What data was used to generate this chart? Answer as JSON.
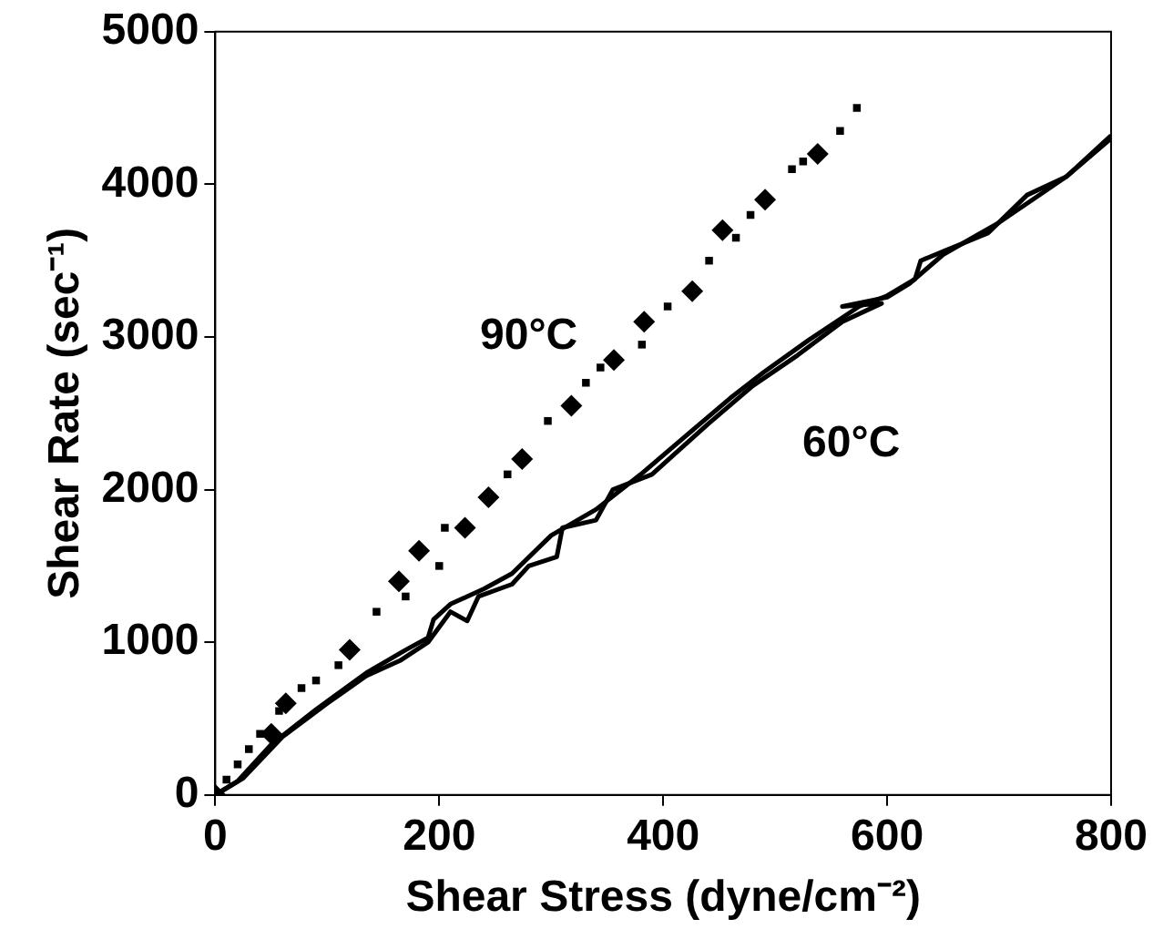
{
  "chart_data": {
    "type": "scatter",
    "xlabel": "Shear Stress (dyne/cm⁻²)",
    "ylabel": "Shear Rate (sec⁻¹)",
    "xlim": [
      0,
      800
    ],
    "xticks": [
      0,
      200,
      400,
      600,
      800
    ],
    "ylim": [
      0,
      5000
    ],
    "yticks": [
      0,
      1000,
      2000,
      3000,
      4000,
      5000
    ],
    "grid": false,
    "legend": false,
    "series": [
      {
        "type": "scatter",
        "marker": "square",
        "color": "#000000",
        "x": [
          10,
          20,
          30,
          40,
          57,
          77,
          90,
          110,
          144,
          170,
          200,
          205,
          261,
          297,
          331,
          344,
          381,
          404,
          441,
          465,
          478,
          515,
          525,
          558,
          573
        ],
        "values": [
          100,
          200,
          300,
          400,
          550,
          700,
          750,
          850,
          1200,
          1300,
          1500,
          1750,
          2100,
          2450,
          2700,
          2800,
          2950,
          3200,
          3500,
          3650,
          3800,
          4100,
          4150,
          4350,
          4500
        ]
      },
      {
        "type": "scatter",
        "marker": "diamond",
        "color": "#000000",
        "x": [
          0,
          50,
          63,
          120,
          164,
          182,
          223,
          244,
          274,
          318,
          356,
          383,
          426,
          453,
          491,
          538
        ],
        "values": [
          0,
          400,
          600,
          950,
          1400,
          1600,
          1750,
          1950,
          2200,
          2550,
          2850,
          3100,
          3300,
          3700,
          3900,
          4200
        ]
      },
      {
        "type": "line",
        "marker": "none",
        "color": "#000000",
        "x": [
          0,
          20,
          50,
          90,
          135,
          170,
          190,
          195,
          210,
          240,
          265,
          300,
          340,
          380,
          420,
          460,
          490,
          530,
          575,
          600,
          625,
          630,
          650,
          690,
          725,
          760,
          800
        ],
        "values": [
          0,
          90,
          330,
          560,
          800,
          950,
          1030,
          1150,
          1250,
          1350,
          1450,
          1700,
          1870,
          2100,
          2350,
          2600,
          2770,
          2980,
          3200,
          3270,
          3380,
          3500,
          3560,
          3680,
          3930,
          4050,
          4320
        ]
      },
      {
        "type": "line",
        "marker": "none",
        "color": "#000000",
        "x": [
          0,
          25,
          60,
          100,
          135,
          165,
          190,
          210,
          225,
          235,
          265,
          280,
          305,
          310,
          340,
          355,
          390,
          440,
          480,
          520,
          560,
          595,
          560,
          600,
          620,
          650,
          700,
          760,
          800
        ],
        "values": [
          0,
          110,
          380,
          600,
          780,
          880,
          1000,
          1200,
          1140,
          1300,
          1380,
          1500,
          1560,
          1750,
          1800,
          2000,
          2100,
          2430,
          2680,
          2880,
          3100,
          3220,
          3200,
          3260,
          3350,
          3540,
          3750,
          4050,
          4300
        ]
      }
    ],
    "annotations": [
      "90°C",
      "60°C"
    ]
  }
}
